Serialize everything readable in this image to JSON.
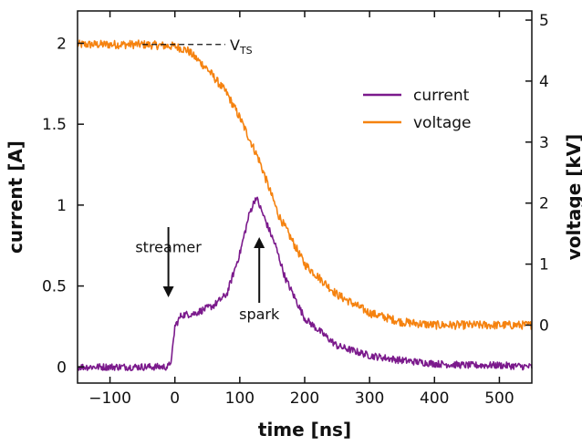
{
  "chart_data": {
    "type": "line",
    "xlabel": "time [ns]",
    "ylabel": "current [A]",
    "y2label": "voltage [kV]",
    "xlim": [
      -150,
      550
    ],
    "ylim": [
      -0.1,
      2.2
    ],
    "y2lim": [
      -0.95,
      5.15
    ],
    "x_ticks": [
      -100,
      0,
      100,
      200,
      300,
      400,
      500
    ],
    "x_tick_labels": [
      "−100",
      "0",
      "100",
      "200",
      "300",
      "400",
      "500"
    ],
    "y_ticks": [
      0,
      0.5,
      1,
      1.5,
      2
    ],
    "y_tick_labels": [
      "0",
      "0.5",
      "1",
      "1.5",
      "2"
    ],
    "y2_ticks": [
      0,
      1,
      2,
      3,
      4,
      5
    ],
    "y2_tick_labels": [
      "0",
      "1",
      "2",
      "3",
      "4",
      "5"
    ],
    "grid": false,
    "legend_position": "top-right",
    "series": [
      {
        "name": "current",
        "axis": "left",
        "color": "#7b1a8c",
        "x": [
          -150,
          -100,
          -50,
          -10,
          -5,
          0,
          10,
          30,
          60,
          80,
          100,
          115,
          125,
          130,
          140,
          155,
          170,
          200,
          250,
          300,
          350,
          400,
          450,
          500,
          550
        ],
        "y": [
          0.0,
          0.0,
          0.0,
          0.0,
          0.05,
          0.25,
          0.32,
          0.33,
          0.38,
          0.45,
          0.7,
          0.95,
          1.05,
          1.0,
          0.9,
          0.75,
          0.55,
          0.3,
          0.13,
          0.07,
          0.04,
          0.02,
          0.01,
          0.01,
          0.0
        ]
      },
      {
        "name": "voltage",
        "axis": "right",
        "color": "#f5820f",
        "x": [
          -150,
          -100,
          -50,
          0,
          20,
          50,
          80,
          100,
          130,
          160,
          200,
          250,
          300,
          350,
          400,
          450,
          500,
          550
        ],
        "y": [
          4.6,
          4.6,
          4.6,
          4.57,
          4.5,
          4.2,
          3.8,
          3.4,
          2.7,
          1.8,
          1.0,
          0.5,
          0.2,
          0.05,
          0.0,
          0.0,
          0.0,
          0.0
        ]
      }
    ],
    "annotations": [
      {
        "text": "streamer",
        "x": -10,
        "y": 0.55,
        "arrow": "down"
      },
      {
        "text": "spark",
        "x": 130,
        "y": 0.3,
        "arrow": "up"
      },
      {
        "text_main": "V",
        "text_sub": "TS",
        "y2": 4.6
      }
    ]
  }
}
